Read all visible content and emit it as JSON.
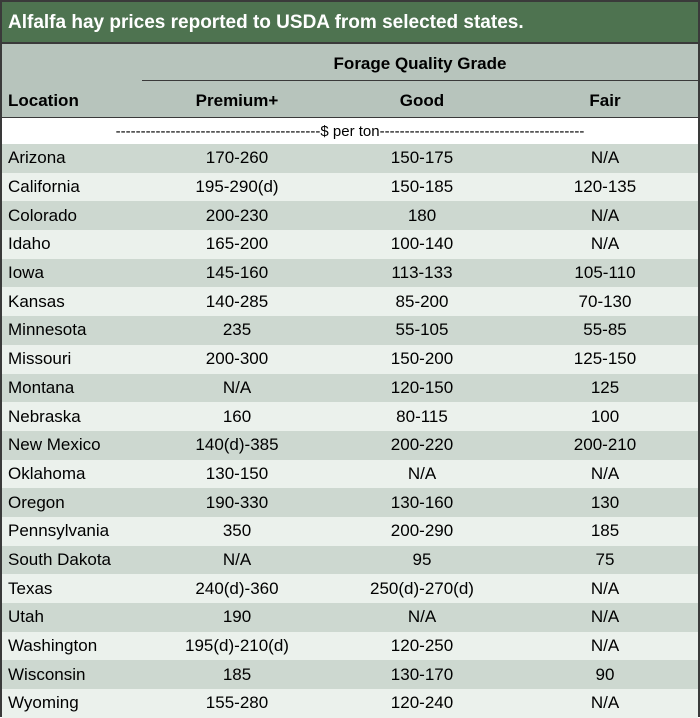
{
  "title": "Alfalfa hay prices reported to USDA from selected states.",
  "header": {
    "group_label": "Forage Quality Grade",
    "location_label": "Location",
    "premium_label": "Premium+",
    "good_label": "Good",
    "fair_label": "Fair"
  },
  "unit_line": "-----------------------------------------$ per ton-----------------------------------------",
  "rows": [
    {
      "location": "Arizona",
      "premium": "170-260",
      "good": "150-175",
      "fair": "N/A"
    },
    {
      "location": "California",
      "premium": "195-290(d)",
      "good": "150-185",
      "fair": "120-135"
    },
    {
      "location": "Colorado",
      "premium": "200-230",
      "good": "180",
      "fair": "N/A"
    },
    {
      "location": "Idaho",
      "premium": "165-200",
      "good": "100-140",
      "fair": "N/A"
    },
    {
      "location": "Iowa",
      "premium": "145-160",
      "good": "113-133",
      "fair": "105-110"
    },
    {
      "location": "Kansas",
      "premium": "140-285",
      "good": "85-200",
      "fair": "70-130"
    },
    {
      "location": "Minnesota",
      "premium": "235",
      "good": "55-105",
      "fair": "55-85"
    },
    {
      "location": "Missouri",
      "premium": "200-300",
      "good": "150-200",
      "fair": "125-150"
    },
    {
      "location": "Montana",
      "premium": "N/A",
      "good": "120-150",
      "fair": "125"
    },
    {
      "location": "Nebraska",
      "premium": "160",
      "good": "80-115",
      "fair": "100"
    },
    {
      "location": "New Mexico",
      "premium": "140(d)-385",
      "good": "200-220",
      "fair": "200-210"
    },
    {
      "location": "Oklahoma",
      "premium": "130-150",
      "good": "N/A",
      "fair": "N/A"
    },
    {
      "location": "Oregon",
      "premium": "190-330",
      "good": "130-160",
      "fair": "130"
    },
    {
      "location": "Pennsylvania",
      "premium": "350",
      "good": "200-290",
      "fair": "185"
    },
    {
      "location": "South Dakota",
      "premium": "N/A",
      "good": "95",
      "fair": "75"
    },
    {
      "location": "Texas",
      "premium": "240(d)-360",
      "good": "250(d)-270(d)",
      "fair": "N/A"
    },
    {
      "location": "Utah",
      "premium": "190",
      "good": "N/A",
      "fair": "N/A"
    },
    {
      "location": "Washington",
      "premium": "195(d)-210(d)",
      "good": "120-250",
      "fair": "N/A"
    },
    {
      "location": "Wisconsin",
      "premium": "185",
      "good": "130-170",
      "fair": "90"
    },
    {
      "location": "Wyoming",
      "premium": "155-280",
      "good": "120-240",
      "fair": "N/A"
    }
  ]
}
